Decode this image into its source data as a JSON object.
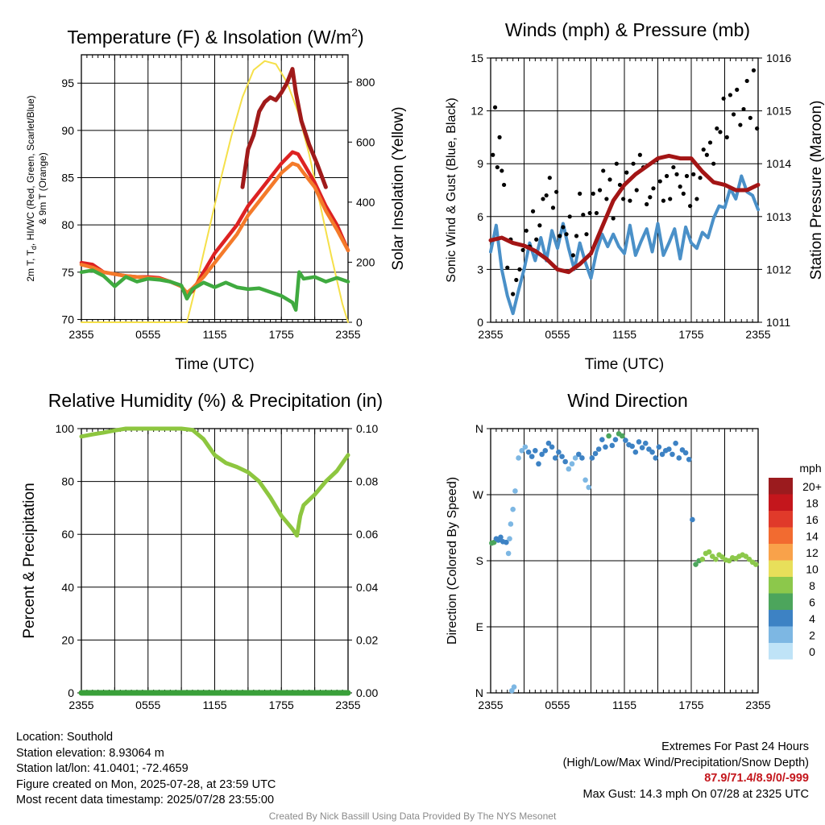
{
  "panels": {
    "temperature": {
      "title": "Temperature (F) & Insolation (W/m²)",
      "ylabel_left": "2m T, T_d, HI/WC (Red, Green, Scarlet/Blue) & 9m T (Orange)",
      "ylabel_left_line1": "2m T, T",
      "ylabel_left_sub": "d",
      "ylabel_left_line1_rest": ", HI/WC (Red, Green, Scarlet/Blue)",
      "ylabel_left_line2": "& 9m T (Orange)",
      "ylabel_right": "Solar Insolation (Yellow)",
      "xlabel": "Time (UTC)"
    },
    "winds": {
      "title": "Winds (mph) & Pressure (mb)",
      "ylabel_left": "Sonic Wind & Gust (Blue, Black)",
      "ylabel_right": "Station Pressure (Maroon)",
      "xlabel": "Time (UTC)"
    },
    "humidity": {
      "title": "Relative Humidity (%) & Precipitation (in)",
      "ylabel_left": "Percent & Precipitation"
    },
    "direction": {
      "title": "Wind Direction",
      "ylabel_left": "Direction (Colored By Speed)",
      "legend_title": "mph"
    }
  },
  "chart_data": [
    {
      "type": "line",
      "title": "Temperature (F) & Insolation (W/m2)",
      "xlabel": "Time (UTC)",
      "ylabel": "2m T, Td, HI/WC (Red, Green, Scarlet/Blue) & 9m T (Orange)",
      "y2label": "Solar Insolation (Yellow)",
      "x_ticks": [
        "2355",
        "0555",
        "1155",
        "1755",
        "2355"
      ],
      "x_range_hours": [
        0,
        24
      ],
      "ylim": [
        69.7,
        98
      ],
      "y_ticks": [
        70,
        75,
        80,
        85,
        90,
        95
      ],
      "y2lim": [
        0,
        880
      ],
      "y2_ticks": [
        0,
        200,
        400,
        600,
        800
      ],
      "grid": true,
      "series": [
        {
          "color": "#a01a1a",
          "axis": "left",
          "x": [
            14.5,
            15,
            15.5,
            16,
            16.5,
            17,
            17.5,
            18,
            18.5,
            19,
            19.3,
            19.8,
            20.5,
            21.2,
            22
          ],
          "y": [
            84,
            88,
            89.5,
            92,
            93,
            93.5,
            93.2,
            94,
            95,
            96.5,
            94,
            91,
            88.5,
            86.5,
            84
          ]
        },
        {
          "color": "#dd2222",
          "axis": "left",
          "x": [
            0,
            1,
            2,
            3,
            4,
            5,
            6,
            7,
            8,
            9,
            9.5,
            10,
            10.5,
            11,
            12,
            13,
            14,
            15,
            16,
            17,
            18,
            19,
            19.5,
            20,
            21,
            22,
            23,
            24
          ],
          "y": [
            76,
            75.8,
            75,
            74.8,
            74.6,
            74.5,
            74.5,
            74.4,
            74,
            73.5,
            72.5,
            73,
            74,
            75,
            77,
            78.5,
            80,
            82,
            83.5,
            85,
            86.5,
            87.7,
            87.5,
            86.5,
            84.5,
            82,
            80,
            77.3
          ]
        },
        {
          "color": "#f47a2a",
          "axis": "left",
          "x": [
            0,
            1,
            2,
            3,
            4,
            5,
            6,
            7,
            8,
            9,
            9.5,
            10,
            11,
            12,
            13,
            14,
            15,
            16,
            17,
            18,
            19,
            19.5,
            20,
            21,
            22,
            23,
            24
          ],
          "y": [
            75.8,
            75.5,
            75,
            74.8,
            74.6,
            74.5,
            74.4,
            74.3,
            74,
            73.5,
            72.8,
            73.3,
            74.5,
            76,
            77.5,
            79,
            81,
            82.5,
            84,
            85.5,
            86.5,
            86.3,
            85.5,
            84,
            81.5,
            79.5,
            77.3
          ]
        },
        {
          "color": "#3faa3f",
          "axis": "left",
          "x": [
            0,
            1,
            2,
            3,
            4,
            5,
            6,
            7,
            8,
            9,
            9.5,
            10,
            11,
            12,
            13,
            14,
            15,
            16,
            17,
            18,
            19,
            19.3,
            19.6,
            20,
            21,
            22,
            23,
            24
          ],
          "y": [
            75,
            75.2,
            74.6,
            73.5,
            74.5,
            74,
            74.3,
            74.2,
            74,
            73.6,
            72.2,
            73.2,
            73.9,
            73.4,
            73.9,
            73.4,
            73.2,
            73.3,
            72.9,
            72.5,
            71.8,
            71,
            75,
            74.3,
            74.5,
            74,
            74.4,
            74
          ]
        },
        {
          "color": "#f5e04a",
          "axis": "right",
          "x": [
            0,
            9.5,
            10.5,
            11.5,
            12.5,
            13.5,
            14.5,
            15.5,
            16.5,
            17.5,
            18.5,
            19.5,
            20.5,
            21.5,
            22.5,
            23.5,
            24
          ],
          "y": [
            0,
            0,
            150,
            310,
            470,
            620,
            750,
            840,
            870,
            860,
            800,
            700,
            560,
            390,
            220,
            60,
            0
          ]
        }
      ]
    },
    {
      "type": "line",
      "title": "Winds (mph) & Pressure (mb)",
      "xlabel": "Time (UTC)",
      "ylabel": "Sonic Wind & Gust (Blue, Black)",
      "y2label": "Station Pressure (Maroon)",
      "x_ticks": [
        "2355",
        "0555",
        "1155",
        "1755",
        "2355"
      ],
      "x_range_hours": [
        0,
        24
      ],
      "ylim": [
        0,
        15
      ],
      "y_ticks": [
        0,
        3,
        6,
        9,
        12,
        15
      ],
      "y2lim": [
        1011,
        1016
      ],
      "y2_ticks": [
        1011,
        1012,
        1013,
        1014,
        1015,
        1016
      ],
      "grid": true,
      "series": [
        {
          "color": "#4a90c8",
          "axis": "left",
          "x": [
            0,
            0.5,
            1,
            1.5,
            2,
            2.5,
            3,
            3.5,
            4,
            4.5,
            5,
            5.5,
            6,
            6.5,
            7,
            7.5,
            8,
            8.5,
            9,
            9.5,
            10,
            10.5,
            11,
            11.5,
            12,
            12.5,
            13,
            13.5,
            14,
            14.5,
            15,
            15.5,
            16,
            16.5,
            17,
            17.5,
            18,
            18.5,
            19,
            19.5,
            20,
            20.5,
            21,
            21.5,
            22,
            22.5,
            23,
            23.5,
            24
          ],
          "y": [
            4,
            5.5,
            3,
            1.5,
            0.5,
            1.8,
            3,
            4.5,
            3.5,
            4.8,
            3.5,
            5.2,
            4.2,
            5.6,
            4.2,
            3,
            4.5,
            3.4,
            2.5,
            4,
            5,
            4.3,
            5,
            4.3,
            3.9,
            5.5,
            3.8,
            4.6,
            5.3,
            4,
            5.6,
            3.8,
            4.5,
            5.3,
            3.6,
            5.4,
            4.5,
            4.2,
            5.1,
            4.8,
            5.9,
            6.6,
            6.5,
            7.6,
            7,
            8.3,
            7.4,
            7.2,
            6.4
          ]
        },
        {
          "color": "#a31515",
          "axis": "right",
          "x": [
            0,
            1,
            2,
            3,
            4,
            5,
            6,
            7,
            8,
            9,
            10,
            11,
            12,
            13,
            14,
            15,
            16,
            17,
            18,
            19,
            20,
            21,
            22,
            23,
            24
          ],
          "y": [
            1012.55,
            1012.6,
            1012.5,
            1012.45,
            1012.35,
            1012.2,
            1012,
            1011.95,
            1012.1,
            1012.3,
            1012.8,
            1013.3,
            1013.6,
            1013.8,
            1013.95,
            1014.1,
            1014.15,
            1014.1,
            1014.1,
            1013.85,
            1013.65,
            1013.6,
            1013.5,
            1013.5,
            1013.6
          ]
        }
      ],
      "gust_points": {
        "color": "#000000",
        "axis": "left",
        "x": [
          0.2,
          0.4,
          0.6,
          0.8,
          1.0,
          1.2,
          1.5,
          1.8,
          2.0,
          2.3,
          2.6,
          2.9,
          3.2,
          3.5,
          3.8,
          4.1,
          4.4,
          4.7,
          5.0,
          5.3,
          5.6,
          5.9,
          6.2,
          6.5,
          6.8,
          7.1,
          7.4,
          7.7,
          8.0,
          8.3,
          8.6,
          8.9,
          9.2,
          9.5,
          9.8,
          10.1,
          10.4,
          10.7,
          11.0,
          11.3,
          11.6,
          11.9,
          12.2,
          12.5,
          12.8,
          13.1,
          13.4,
          13.7,
          14.0,
          14.3,
          14.6,
          14.9,
          15.2,
          15.5,
          15.8,
          16.1,
          16.4,
          16.7,
          17.0,
          17.3,
          17.6,
          17.9,
          18.2,
          18.5,
          18.8,
          19.1,
          19.4,
          19.7,
          20.0,
          20.3,
          20.6,
          20.9,
          21.2,
          21.5,
          21.8,
          22.1,
          22.4,
          22.7,
          23.0,
          23.3,
          23.6,
          23.9
        ],
        "y": [
          9.5,
          12.2,
          8.8,
          10.5,
          8.6,
          7.8,
          3.1,
          4.7,
          1.6,
          2.4,
          3.0,
          4.1,
          5.2,
          4.3,
          6.3,
          4.7,
          5.5,
          7.0,
          7.2,
          8.2,
          6.5,
          7.4,
          4.9,
          5.4,
          5.0,
          6.0,
          3.8,
          4.9,
          7.3,
          6.1,
          5.0,
          6.2,
          7.3,
          6.2,
          7.5,
          8.6,
          7.0,
          8.1,
          5.9,
          9.0,
          7.8,
          7.0,
          8.5,
          6.9,
          9.0,
          7.5,
          9.5,
          8.8,
          6.7,
          7.1,
          7.6,
          9.2,
          8.0,
          6.9,
          8.3,
          7.0,
          8.8,
          8.4,
          7.7,
          7.3,
          8.3,
          6.6,
          8.4,
          7.0,
          8.2,
          9.8,
          9.5,
          10.2,
          9.0,
          11.0,
          10.8,
          12.7,
          10.5,
          12.9,
          11.8,
          13.2,
          11.2,
          12.1,
          13.7,
          11.6,
          14.3,
          11.0
        ]
      }
    },
    {
      "type": "line",
      "title": "Relative Humidity (%) & Precipitation (in)",
      "ylabel": "Percent & Precipitation",
      "x_ticks": [
        "2355",
        "0555",
        "1155",
        "1755",
        "2355"
      ],
      "x_range_hours": [
        0,
        24
      ],
      "ylim": [
        0,
        100
      ],
      "y_ticks": [
        0,
        20,
        40,
        60,
        80,
        100
      ],
      "y2lim": [
        0,
        0.1
      ],
      "y2_ticks": [
        "0.00",
        "0.02",
        "0.04",
        "0.06",
        "0.08",
        "0.10"
      ],
      "grid": true,
      "series": [
        {
          "color": "#8dc63f",
          "axis": "left",
          "x": [
            0,
            1,
            2,
            3,
            4,
            5,
            6,
            7,
            8,
            9,
            10,
            11,
            12,
            13,
            14,
            15,
            16,
            17,
            18,
            19,
            19.4,
            19.7,
            20,
            21,
            22,
            23,
            24
          ],
          "y": [
            97,
            97.8,
            98.5,
            99.3,
            100,
            100,
            100,
            100,
            100,
            100,
            99.5,
            96,
            90,
            87,
            85.5,
            83.5,
            80,
            74,
            67,
            62,
            59.5,
            67,
            71,
            75,
            80,
            84,
            90
          ]
        },
        {
          "color": "#3aa03a",
          "axis": "right",
          "x": [
            0,
            24
          ],
          "y": [
            0.0,
            0.0
          ]
        }
      ]
    },
    {
      "type": "scatter",
      "title": "Wind Direction",
      "ylabel": "Direction (Colored By Speed)",
      "x_ticks": [
        "2355",
        "0555",
        "1155",
        "1755",
        "2355"
      ],
      "x_range_hours": [
        0,
        24
      ],
      "y_ticks": [
        "N",
        "E",
        "S",
        "W",
        "N"
      ],
      "ylim_degrees": [
        0,
        360
      ],
      "grid": true,
      "legend": {
        "title": "mph",
        "labels": [
          "20+",
          "18",
          "16",
          "14",
          "12",
          "10",
          "8",
          "6",
          "4",
          "2",
          "0"
        ],
        "colors": [
          "#9b1b1e",
          "#c4161c",
          "#e03a2a",
          "#f26b30",
          "#f9a24a",
          "#e8df5a",
          "#8cc84b",
          "#4ca55c",
          "#3d82c4",
          "#7db7e3",
          "#bfe3f7"
        ],
        "placement": "right"
      },
      "points": {
        "x": [
          0.1,
          0.3,
          0.5,
          0.7,
          0.9,
          1.1,
          1.4,
          1.6,
          1.7,
          1.8,
          2.0,
          2.2,
          2.5,
          2.8,
          3.1,
          3.4,
          3.7,
          4.0,
          4.3,
          4.6,
          4.9,
          5.2,
          5.5,
          5.8,
          6.1,
          6.4,
          6.7,
          7.0,
          7.3,
          7.6,
          7.9,
          8.2,
          8.5,
          8.8,
          9.1,
          9.4,
          9.7,
          10.0,
          10.3,
          10.6,
          10.9,
          11.2,
          11.5,
          11.8,
          12.1,
          12.4,
          12.7,
          13.0,
          13.3,
          13.6,
          13.9,
          14.2,
          14.5,
          14.8,
          15.1,
          15.4,
          15.7,
          16.0,
          16.3,
          16.6,
          16.9,
          17.2,
          17.5,
          17.8,
          18.1,
          18.4,
          18.7,
          19.0,
          19.3,
          19.6,
          19.9,
          20.2,
          20.5,
          20.8,
          21.1,
          21.4,
          21.7,
          22.0,
          22.3,
          22.6,
          22.9,
          23.2,
          23.5,
          23.8,
          1.9,
          2.1
        ],
        "direction_deg": [
          204,
          205,
          210,
          208,
          212,
          206,
          205,
          190,
          210,
          230,
          250,
          275,
          320,
          330,
          335,
          328,
          322,
          330,
          312,
          325,
          330,
          340,
          335,
          320,
          328,
          322,
          315,
          305,
          312,
          320,
          325,
          320,
          290,
          280,
          320,
          326,
          332,
          345,
          335,
          350,
          337,
          345,
          353,
          350,
          344,
          338,
          336,
          328,
          342,
          334,
          340,
          332,
          328,
          320,
          335,
          325,
          330,
          332,
          325,
          340,
          320,
          331,
          327,
          318,
          236,
          175,
          180,
          182,
          190,
          192,
          186,
          182,
          188,
          185,
          181,
          180,
          184,
          183,
          186,
          188,
          186,
          182,
          178,
          175,
          3,
          8
        ],
        "speed_mph": [
          5,
          5,
          4,
          4,
          4,
          4,
          4,
          2,
          2,
          2,
          1,
          1,
          1,
          2,
          2,
          3,
          4,
          4,
          4,
          4,
          4,
          3,
          3,
          4,
          3,
          4,
          3,
          2,
          2,
          2,
          3,
          3,
          1,
          1,
          3,
          4,
          4,
          4,
          4,
          5,
          4,
          4,
          5,
          5,
          4,
          4,
          4,
          4,
          4,
          4,
          4,
          4,
          4,
          3,
          4,
          3,
          4,
          4,
          4,
          4,
          4,
          4,
          4,
          4,
          4,
          5,
          6,
          7,
          7,
          8,
          8,
          8,
          8,
          8,
          8,
          8,
          8,
          8,
          8,
          8,
          8,
          8,
          8,
          8,
          1,
          1
        ]
      }
    }
  ],
  "info": {
    "location": "Location: Southold",
    "elevation": "Station elevation: 8.93064 m",
    "latlon": "Station lat/lon: 41.0401; -72.4659",
    "created": "Figure created on Mon, 2025-07-28, at 23:59 UTC",
    "recent": "Most recent data timestamp: 2025/07/28 23:55:00",
    "extremes_title": "Extremes For Past 24 Hours",
    "extremes_subtitle": "(High/Low/Max Wind/Precipitation/Snow Depth)",
    "extremes_values": "87.9/71.4/8.9/0/-999",
    "max_gust": "Max Gust: 14.3 mph On 07/28 at 2325 UTC",
    "credit": "Created By Nick Bassill Using Data Provided By The NYS Mesonet"
  }
}
